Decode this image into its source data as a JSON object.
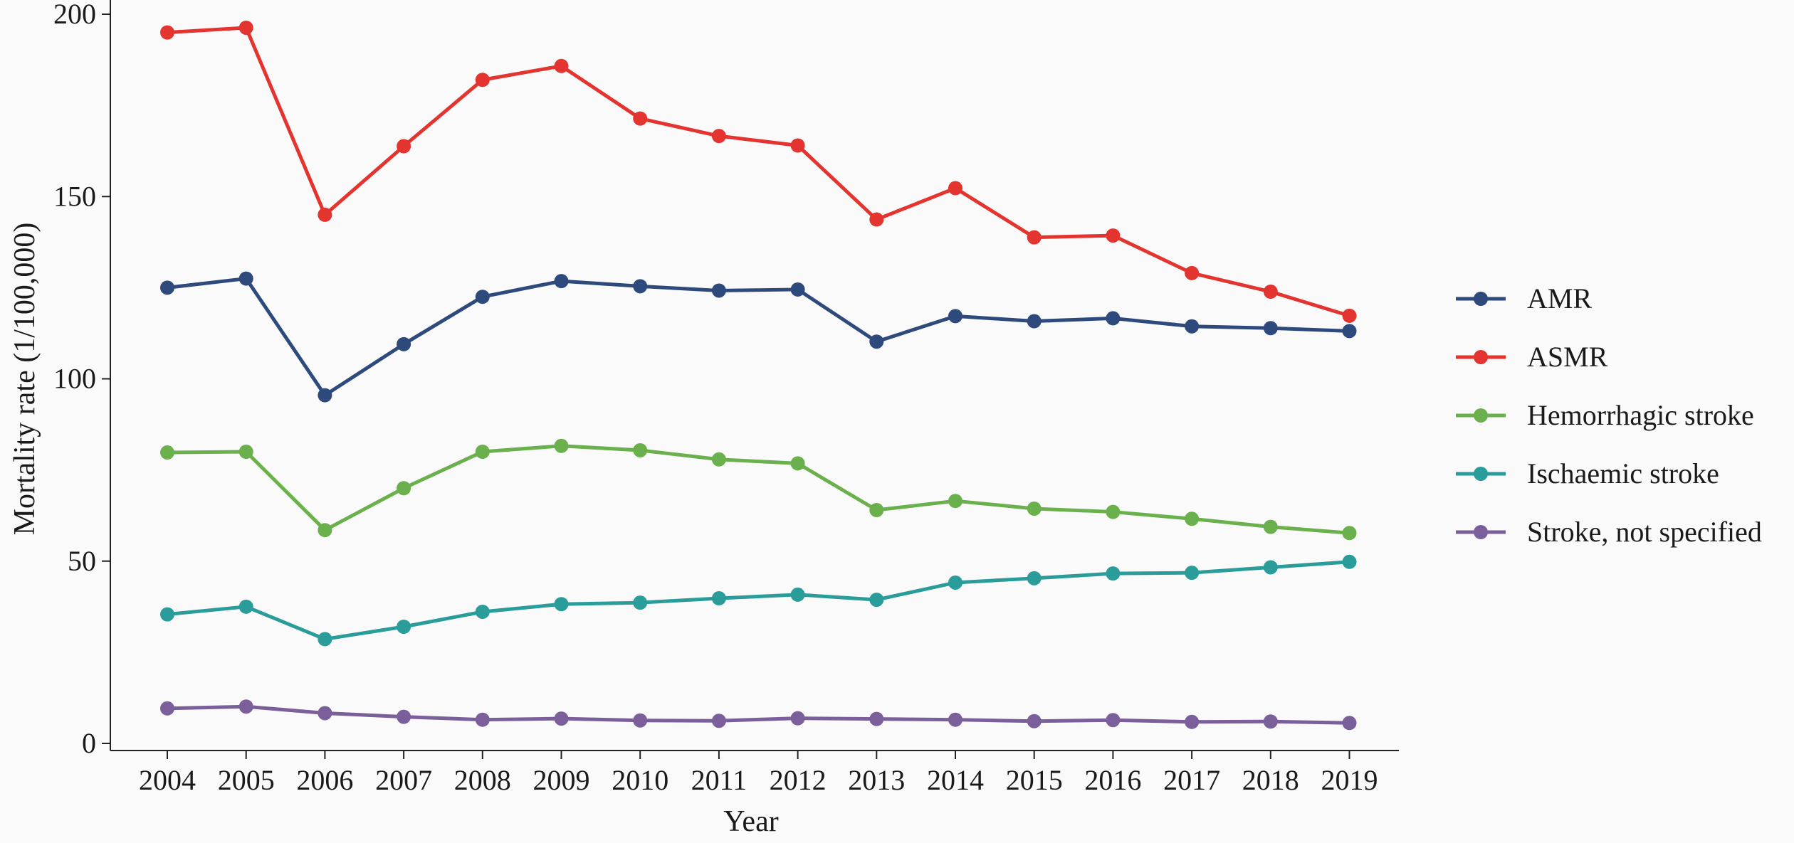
{
  "chart_data": {
    "type": "line",
    "title": "",
    "xlabel": "Year",
    "ylabel": "Mortality rate (1/100,000)",
    "x": [
      2004,
      2005,
      2006,
      2007,
      2008,
      2009,
      2010,
      2011,
      2012,
      2013,
      2014,
      2015,
      2016,
      2017,
      2018,
      2019
    ],
    "ylim": [
      0,
      200
    ],
    "yticks": [
      0,
      50,
      100,
      150,
      200
    ],
    "grid": false,
    "legend_position": "right",
    "series": [
      {
        "name": "AMR",
        "color": "#2e4a7d",
        "values": [
          125.0,
          127.5,
          95.5,
          109.5,
          122.5,
          126.8,
          125.4,
          124.2,
          124.5,
          110.2,
          117.2,
          115.8,
          116.6,
          114.4,
          113.9,
          113.1
        ]
      },
      {
        "name": "ASMR",
        "color": "#e3342f",
        "values": [
          195.0,
          196.3,
          145.0,
          163.8,
          182.0,
          185.8,
          171.4,
          166.6,
          164.0,
          143.7,
          152.3,
          138.8,
          139.3,
          129.0,
          123.9,
          117.3
        ]
      },
      {
        "name": "Hemorrhagic stroke",
        "color": "#6ab04c",
        "values": [
          79.8,
          80.0,
          58.5,
          70.0,
          80.0,
          81.6,
          80.4,
          77.9,
          76.8,
          64.0,
          66.5,
          64.4,
          63.5,
          61.6,
          59.4,
          57.7
        ]
      },
      {
        "name": "Ischaemic stroke",
        "color": "#2a9d9a",
        "values": [
          35.4,
          37.5,
          28.6,
          32.0,
          36.1,
          38.2,
          38.6,
          39.8,
          40.8,
          39.4,
          44.1,
          45.3,
          46.6,
          46.8,
          48.3,
          49.8
        ]
      },
      {
        "name": "Stroke, not specified",
        "color": "#7a5f9a",
        "values": [
          9.6,
          10.1,
          8.3,
          7.3,
          6.5,
          6.8,
          6.3,
          6.2,
          6.9,
          6.7,
          6.5,
          6.1,
          6.4,
          5.9,
          6.0,
          5.6
        ]
      }
    ]
  }
}
